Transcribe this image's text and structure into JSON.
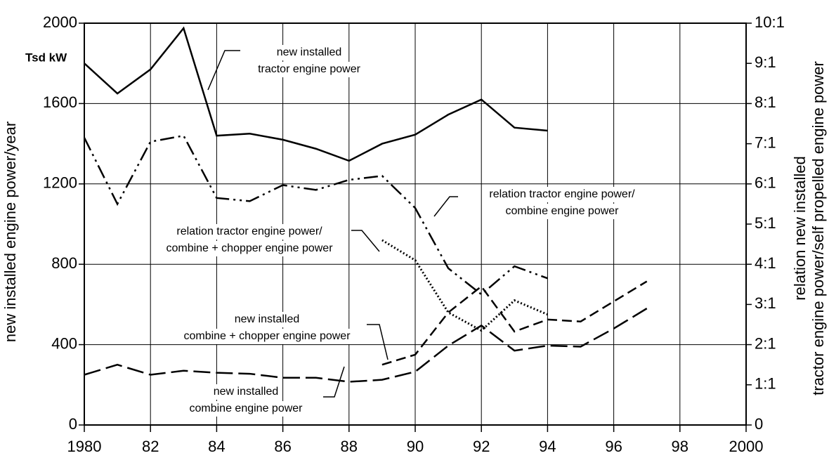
{
  "chart_data": {
    "type": "line",
    "unit_label": "Tsd kW",
    "ylabel": "new installed engine power/year",
    "y2label": [
      "relation new installed",
      "tractor engine power/self propelled engine power"
    ],
    "x": [
      1980,
      1981,
      1982,
      1983,
      1984,
      1985,
      1986,
      1987,
      1988,
      1989,
      1990,
      1991,
      1992,
      1993,
      1994,
      1995,
      1996,
      1997
    ],
    "xlim": [
      1980,
      2000
    ],
    "xticks": [
      1980,
      {
        "value": 1982,
        "label": "82"
      },
      {
        "value": 1984,
        "label": "84"
      },
      {
        "value": 1986,
        "label": "86"
      },
      {
        "value": 1988,
        "label": "88"
      },
      {
        "value": 1990,
        "label": "90"
      },
      {
        "value": 1992,
        "label": "92"
      },
      {
        "value": 1994,
        "label": "94"
      },
      {
        "value": 1996,
        "label": "96"
      },
      {
        "value": 1998,
        "label": "98"
      },
      2000
    ],
    "ylim": [
      0,
      2000
    ],
    "yticks": [
      0,
      400,
      800,
      1200,
      1600,
      2000
    ],
    "y2lim": [
      0,
      10
    ],
    "y2ticks": [
      0,
      {
        "value": 1,
        "label": "1:1"
      },
      {
        "value": 2,
        "label": "2:1"
      },
      {
        "value": 3,
        "label": "3:1"
      },
      {
        "value": 4,
        "label": "4:1"
      },
      {
        "value": 5,
        "label": "5:1"
      },
      {
        "value": 6,
        "label": "6:1"
      },
      {
        "value": 7,
        "label": "7:1"
      },
      {
        "value": 8,
        "label": "8:1"
      },
      {
        "value": 9,
        "label": "9:1"
      },
      {
        "value": 10,
        "label": "10:1"
      }
    ],
    "grid": true,
    "series": [
      {
        "color": "#000",
        "line_style": "solid",
        "annotation": [
          "new installed",
          "tractor engine power"
        ],
        "values": [
          1800,
          1650,
          1770,
          1975,
          1440,
          1450,
          1420,
          1375,
          1315,
          1400,
          1445,
          1545,
          1620,
          1480,
          1465,
          null,
          null,
          null
        ]
      },
      {
        "color": "#000",
        "line_style": "long-dashed",
        "annotation": [
          "new installed",
          "combine engine power"
        ],
        "values": [
          250,
          300,
          250,
          270,
          260,
          255,
          235,
          235,
          215,
          225,
          265,
          395,
          495,
          370,
          395,
          390,
          480,
          580
        ]
      },
      {
        "color": "#000",
        "line_style": "dashed",
        "annotation": [
          "new installed",
          "combine + chopper engine power"
        ],
        "values": [
          null,
          null,
          null,
          null,
          null,
          null,
          null,
          null,
          null,
          300,
          350,
          560,
          690,
          465,
          525,
          515,
          615,
          715
        ]
      },
      {
        "color": "#000",
        "line_style": "dash-dot-dot",
        "axis": "y2",
        "annotation": [
          "relation tractor engine power/",
          "combine engine power"
        ],
        "values": [
          7.15,
          5.5,
          7.05,
          7.2,
          5.65,
          5.57,
          5.97,
          5.85,
          6.1,
          6.2,
          5.4,
          3.9,
          3.25,
          3.95,
          3.65,
          null,
          null,
          null
        ]
      },
      {
        "color": "#000",
        "line_style": "dotted",
        "axis": "y2",
        "annotation": [
          "relation tractor engine power/",
          "combine + chopper engine power"
        ],
        "values": [
          null,
          null,
          null,
          null,
          null,
          null,
          null,
          null,
          null,
          4.6,
          4.1,
          2.8,
          2.35,
          3.1,
          2.75,
          null,
          null,
          null
        ]
      }
    ]
  }
}
